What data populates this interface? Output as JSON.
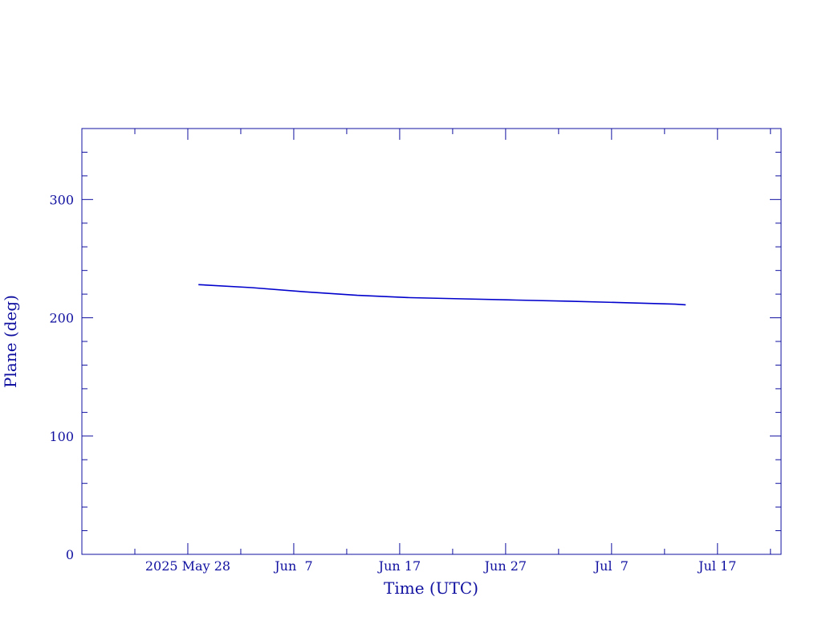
{
  "chart_data": {
    "type": "line",
    "title": "",
    "xlabel": "Time (UTC)",
    "ylabel": "Plane (deg)",
    "xlim": [
      "2025-05-18",
      "2025-07-23"
    ],
    "ylim": [
      0,
      360
    ],
    "x_ticks": [
      {
        "date": "2025-05-28",
        "label": "2025 May 28"
      },
      {
        "date": "2025-06-07",
        "label": "Jun  7"
      },
      {
        "date": "2025-06-17",
        "label": "Jun 17"
      },
      {
        "date": "2025-06-27",
        "label": "Jun 27"
      },
      {
        "date": "2025-07-07",
        "label": "Jul  7"
      },
      {
        "date": "2025-07-17",
        "label": "Jul 17"
      }
    ],
    "y_ticks": [
      0,
      100,
      200,
      300
    ],
    "grid": false,
    "colors": {
      "axes": "#1010a0",
      "series": "#0000cc"
    },
    "series": [
      {
        "x": [
          "2025-05-29",
          "2025-06-03",
          "2025-06-08",
          "2025-06-13",
          "2025-06-18",
          "2025-06-23",
          "2025-06-28",
          "2025-07-03",
          "2025-07-08",
          "2025-07-13",
          "2025-07-14"
        ],
        "values": [
          228,
          225.5,
          222,
          219,
          217,
          216,
          215,
          214,
          212.8,
          211.5,
          211
        ]
      }
    ]
  }
}
